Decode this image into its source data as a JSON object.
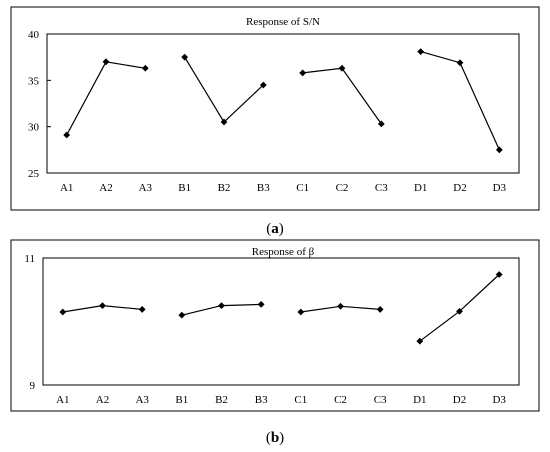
{
  "chart_data": [
    {
      "type": "line",
      "panel_label": "(a)",
      "panel_letter": "a",
      "title": "Response of S/N",
      "categories": [
        "A1",
        "A2",
        "A3",
        "B1",
        "B2",
        "B3",
        "C1",
        "C2",
        "C3",
        "D1",
        "D2",
        "D3"
      ],
      "groups": [
        {
          "categories": [
            "A1",
            "A2",
            "A3"
          ],
          "values": [
            29.1,
            37.0,
            36.3
          ]
        },
        {
          "categories": [
            "B1",
            "B2",
            "B3"
          ],
          "values": [
            37.5,
            30.5,
            34.5
          ]
        },
        {
          "categories": [
            "C1",
            "C2",
            "C3"
          ],
          "values": [
            35.8,
            36.3,
            30.3
          ]
        },
        {
          "categories": [
            "D1",
            "D2",
            "D3"
          ],
          "values": [
            38.1,
            36.9,
            27.5
          ]
        }
      ],
      "ylim": [
        25,
        40
      ],
      "yticks": [
        "25",
        "30",
        "35",
        "40"
      ],
      "grid": false,
      "legend": "none"
    },
    {
      "type": "line",
      "panel_label": "(b)",
      "panel_letter": "b",
      "title": "Response of β",
      "categories": [
        "A1",
        "A2",
        "A3",
        "B1",
        "B2",
        "B3",
        "C1",
        "C2",
        "C3",
        "D1",
        "D2",
        "D3"
      ],
      "groups": [
        {
          "categories": [
            "A1",
            "A2",
            "A3"
          ],
          "values": [
            10.15,
            10.25,
            10.19
          ]
        },
        {
          "categories": [
            "B1",
            "B2",
            "B3"
          ],
          "values": [
            10.1,
            10.25,
            10.27
          ]
        },
        {
          "categories": [
            "C1",
            "C2",
            "C3"
          ],
          "values": [
            10.15,
            10.24,
            10.19
          ]
        },
        {
          "categories": [
            "D1",
            "D2",
            "D3"
          ],
          "values": [
            9.69,
            10.16,
            10.74
          ]
        }
      ],
      "ylim": [
        9,
        11
      ],
      "yticks": [
        "9",
        "11"
      ],
      "grid": false,
      "legend": "none"
    }
  ]
}
